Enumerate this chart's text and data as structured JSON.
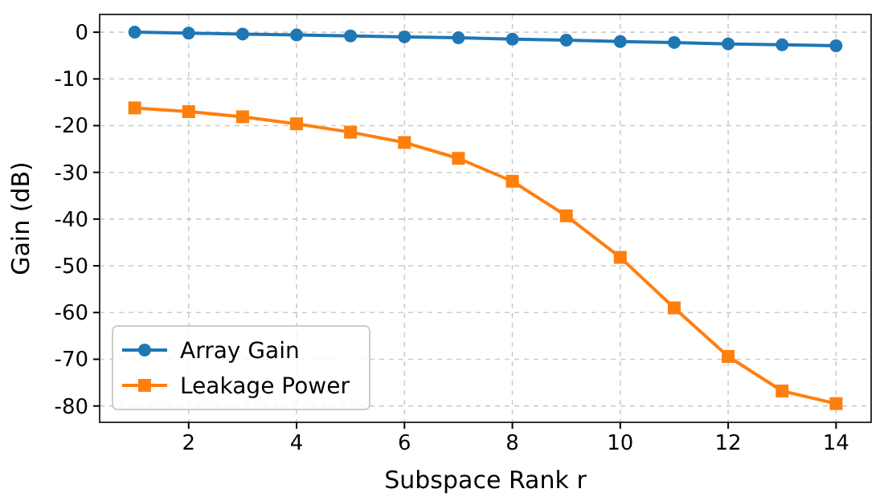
{
  "chart_data": {
    "type": "line",
    "xlabel": "Subspace Rank r",
    "ylabel": "Gain (dB)",
    "x": [
      1,
      2,
      3,
      4,
      5,
      6,
      7,
      8,
      9,
      10,
      11,
      12,
      13,
      14
    ],
    "series": [
      {
        "name": "Array Gain",
        "color": "#1f77b4",
        "marker": "circle",
        "values": [
          0,
          -0.2,
          -0.4,
          -0.6,
          -0.8,
          -1.0,
          -1.2,
          -1.5,
          -1.7,
          -2.0,
          -2.2,
          -2.5,
          -2.7,
          -2.9
        ]
      },
      {
        "name": "Leakage Power",
        "color": "#ff7f0e",
        "marker": "square",
        "values": [
          -16.2,
          -17.0,
          -18.1,
          -19.6,
          -21.4,
          -23.6,
          -27.0,
          -31.9,
          -39.3,
          -48.2,
          -59.0,
          -69.4,
          -76.8,
          -79.5
        ]
      }
    ],
    "xlim": [
      0.35,
      14.65
    ],
    "ylim": [
      -83.5,
      3.8
    ],
    "xticks": [
      2,
      4,
      6,
      8,
      10,
      12,
      14
    ],
    "yticks": [
      -80,
      -70,
      -60,
      -50,
      -40,
      -30,
      -20,
      -10,
      0
    ],
    "grid": true,
    "legend": "bottom left",
    "line_style": "solid"
  }
}
